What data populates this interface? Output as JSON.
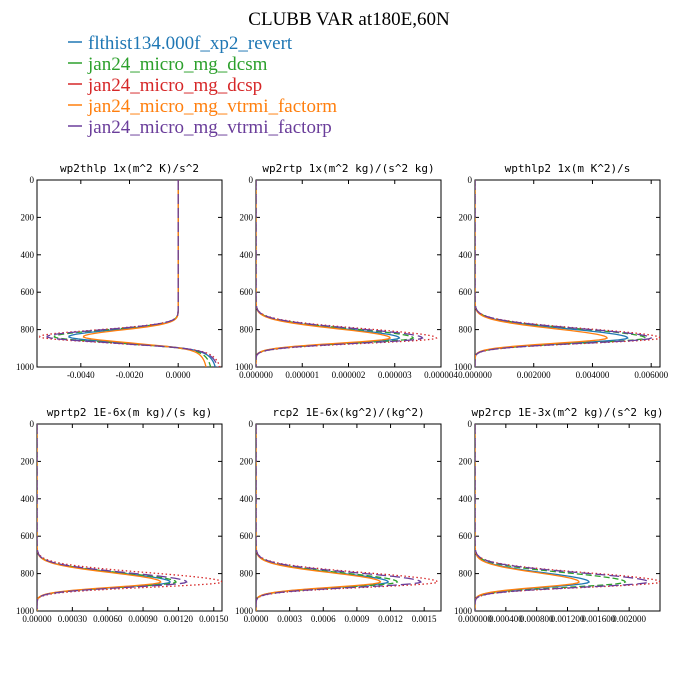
{
  "chart_data": {
    "type": "line",
    "title": "CLUBB VAR at180E,60N",
    "legend": [
      {
        "name": "flthist134.000f_xp2_revert",
        "color": "#1f77b4",
        "dash": "solid"
      },
      {
        "name": "jan24_micro_mg_dcsm",
        "color": "#2ca02c",
        "dash": "dash"
      },
      {
        "name": "jan24_micro_mg_dcsp",
        "color": "#d62728",
        "dash": "dot"
      },
      {
        "name": "jan24_micro_mg_vtrmi_factorm",
        "color": "#ff7f0e",
        "dash": "solid"
      },
      {
        "name": "jan24_micro_mg_vtrmi_factorp",
        "color": "#6a3d9a",
        "dash": "longdash"
      }
    ],
    "ylim": [
      1000,
      0
    ],
    "y_ticks": [
      "0",
      "200",
      "400",
      "600",
      "800",
      "1000"
    ],
    "panels": [
      {
        "title": "wp2thlp  1x(m^2 K)/s^2",
        "xlim": [
          -0.0058,
          0.0018
        ],
        "x_tick_values": [
          -0.004,
          -0.002,
          0.0
        ],
        "x_tick_labels": [
          "-0.0040",
          "-0.0020",
          "0.0000"
        ],
        "shape": "neg",
        "series_peaks": [
          -0.0045,
          -0.0051,
          -0.0057,
          -0.0039,
          -0.0054
        ],
        "surface_x": [
          0.0016,
          0.0014,
          0.0018,
          0.0012,
          0.0017
        ]
      },
      {
        "title": "wp2rtp  1x(m^2 kg)/(s^2 kg)",
        "xlim": [
          0.0,
          4e-06
        ],
        "x_tick_values": [
          0.0,
          1e-06,
          2e-06,
          3e-06,
          4e-06
        ],
        "x_tick_labels": [
          "0.000000",
          "0.000001",
          "0.000002",
          "0.000003",
          "0.000004"
        ],
        "shape": "pos",
        "series_peaks": [
          3.1e-06,
          3.4e-06,
          3.9e-06,
          2.9e-06,
          3.6e-06
        ]
      },
      {
        "title": "wpthlp2  1x(m K^2)/s",
        "xlim": [
          0.0,
          0.0063
        ],
        "x_tick_values": [
          0.0,
          0.002,
          0.004,
          0.006
        ],
        "x_tick_labels": [
          "0.000000",
          "0.002000",
          "0.004000",
          "0.006000"
        ],
        "shape": "pos",
        "series_peaks": [
          0.0052,
          0.0058,
          0.0063,
          0.0045,
          0.006
        ]
      },
      {
        "title": "wprtp2  1E-6x(m kg)/(s kg)",
        "xlim": [
          0.0,
          0.00157
        ],
        "x_tick_values": [
          0.0,
          0.0003,
          0.0006,
          0.0009,
          0.0012,
          0.0015
        ],
        "x_tick_labels": [
          "0.00000",
          "0.00030",
          "0.00060",
          "0.00090",
          "0.00120",
          "0.00150"
        ],
        "shape": "pos",
        "series_peaks": [
          0.00113,
          0.00118,
          0.00157,
          0.00105,
          0.00127
        ]
      },
      {
        "title": "rcp2  1E-6x(kg^2)/(kg^2)",
        "xlim": [
          0.0,
          0.00165
        ],
        "x_tick_values": [
          0.0,
          0.0003,
          0.0006,
          0.0009,
          0.0012,
          0.0015
        ],
        "x_tick_labels": [
          "0.0000",
          "0.0003",
          "0.0006",
          "0.0009",
          "0.0012",
          "0.0015"
        ],
        "shape": "pos",
        "series_peaks": [
          0.00118,
          0.00126,
          0.00162,
          0.00111,
          0.00147
        ]
      },
      {
        "title": "wp2rcp  1E-3x(m^2 kg)/(s^2 kg)",
        "xlim": [
          0.0,
          0.0024
        ],
        "x_tick_values": [
          0.0,
          0.0004,
          0.0008,
          0.0012,
          0.0016,
          0.002
        ],
        "x_tick_labels": [
          "0.000000",
          "0.000400",
          "0.000800",
          "0.001200",
          "0.001600",
          "0.002000"
        ],
        "shape": "pos",
        "series_peaks": [
          0.00148,
          0.00195,
          0.0024,
          0.00135,
          0.00225
        ]
      }
    ]
  }
}
